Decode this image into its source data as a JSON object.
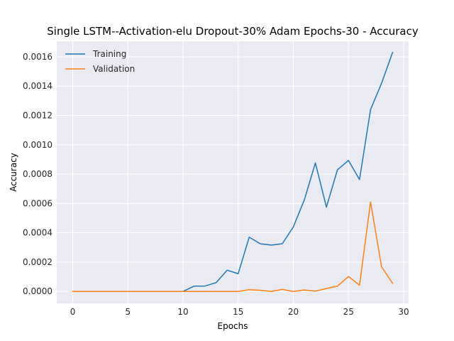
{
  "chart_data": {
    "type": "line",
    "title": "Single LSTM--Activation-elu Dropout-30% Adam Epochs-30 - Accuracy",
    "xlabel": "Epochs",
    "ylabel": "Accuracy",
    "xlim": [
      -1.45,
      30.45
    ],
    "ylim": [
      -8.13e-05,
      0.0017063
    ],
    "xticks": [
      0,
      5,
      10,
      15,
      20,
      25,
      30
    ],
    "xtick_labels": [
      "0",
      "5",
      "10",
      "15",
      "20",
      "25",
      "30"
    ],
    "yticks": [
      0.0,
      0.0002,
      0.0004,
      0.0006,
      0.0008,
      0.001,
      0.0012,
      0.0014,
      0.0016
    ],
    "ytick_labels": [
      "0.0000",
      "0.0002",
      "0.0004",
      "0.0006",
      "0.0008",
      "0.0010",
      "0.0012",
      "0.0014",
      "0.0016"
    ],
    "grid": true,
    "legend_position": "top-left",
    "x": [
      0,
      1,
      2,
      3,
      4,
      5,
      6,
      7,
      8,
      9,
      10,
      11,
      12,
      13,
      14,
      15,
      16,
      17,
      18,
      19,
      20,
      21,
      22,
      23,
      24,
      25,
      26,
      27,
      28,
      29
    ],
    "series": [
      {
        "name": "Training",
        "color": "#1f77b4",
        "values": [
          0,
          0,
          0,
          0,
          0,
          0,
          0,
          0,
          0,
          0,
          0,
          3.6e-05,
          3.7e-05,
          6e-05,
          0.000145,
          0.000121,
          0.00037,
          0.000325,
          0.000316,
          0.000325,
          0.00044,
          0.000625,
          0.000876,
          0.000575,
          0.00083,
          0.000893,
          0.000763,
          0.00124,
          0.00142,
          0.00163
        ]
      },
      {
        "name": "Validation",
        "color": "#ff7f0e",
        "values": [
          0,
          0,
          0,
          0,
          0,
          0,
          0,
          0,
          0,
          0,
          0,
          0,
          0,
          0,
          0,
          0,
          1.2e-05,
          8e-06,
          0,
          1.4e-05,
          0,
          1e-05,
          2e-06,
          2e-05,
          3.6e-05,
          0.000102,
          4.2e-05,
          0.00061,
          0.000168,
          5.5e-05
        ]
      }
    ]
  }
}
